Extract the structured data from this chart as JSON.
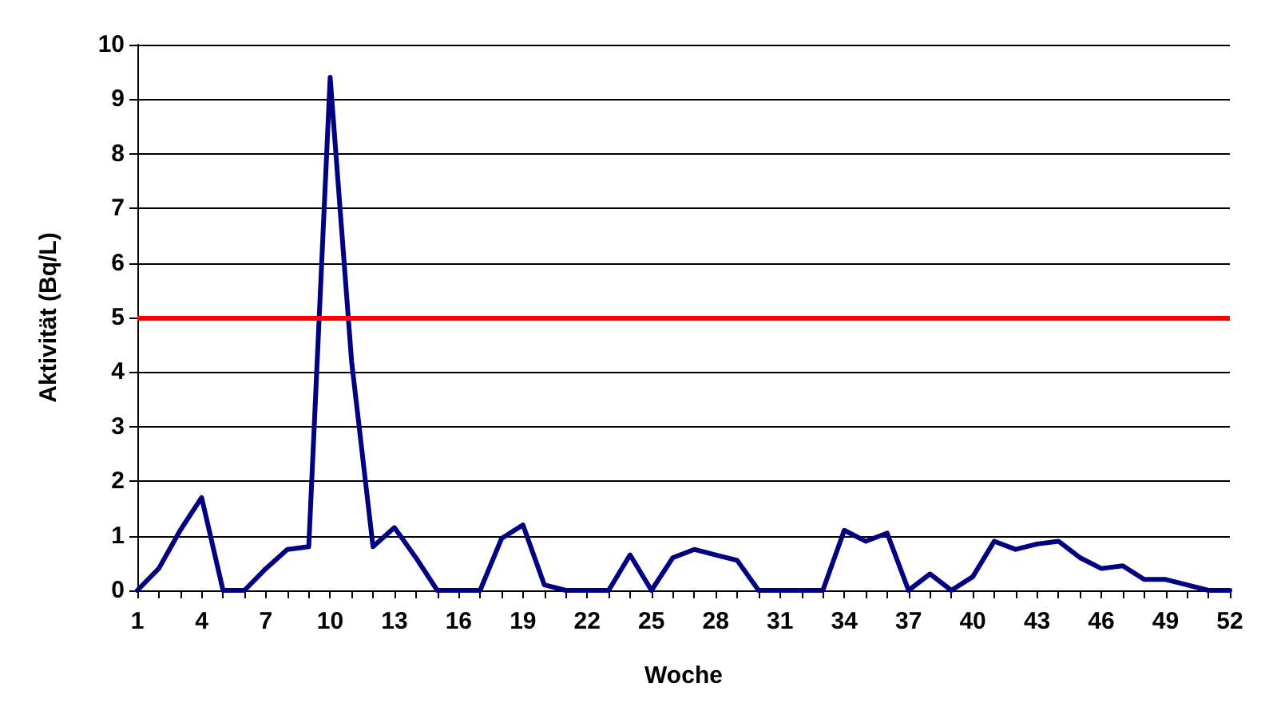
{
  "chart_data": {
    "type": "line",
    "xlabel": "Woche",
    "ylabel": "Aktivität (Bq/L)",
    "categories": [
      "1",
      null,
      null,
      "4",
      null,
      null,
      "7",
      null,
      null,
      "10",
      null,
      null,
      "13",
      null,
      null,
      "16",
      null,
      null,
      "19",
      null,
      null,
      "22",
      null,
      null,
      "25",
      null,
      null,
      "28",
      null,
      null,
      "31",
      null,
      null,
      "34",
      null,
      null,
      "37",
      null,
      null,
      "40",
      null,
      null,
      "43",
      null,
      null,
      "46",
      null,
      null,
      "49",
      null,
      null,
      "52"
    ],
    "series": [
      {
        "color": "#000080",
        "values": [
          0,
          0.4,
          1.1,
          1.7,
          0,
          0,
          0.4,
          0.75,
          0.8,
          9.4,
          4.2,
          0.8,
          1.15,
          0.6,
          0,
          0,
          0,
          0.95,
          1.2,
          0.1,
          0,
          0,
          0,
          0.65,
          0,
          0.6,
          0.75,
          0.65,
          0.55,
          0,
          0,
          0,
          0,
          1.1,
          0.9,
          1.05,
          0,
          0.3,
          0,
          0.25,
          0.9,
          0.75,
          0.85,
          0.9,
          0.6,
          0.4,
          0.45,
          0.2,
          0.2,
          0.1,
          0,
          0
        ]
      }
    ],
    "ylim": [
      0,
      10
    ],
    "yticks": [
      0,
      1,
      2,
      3,
      4,
      5,
      6,
      7,
      8,
      9,
      10
    ],
    "grid": "y",
    "marker": "none",
    "line_style": "solid",
    "ref_lines": [
      {
        "axis": "y",
        "value": 5,
        "color": "#ff0000",
        "line_style": "solid"
      }
    ]
  }
}
